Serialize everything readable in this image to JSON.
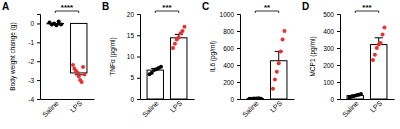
{
  "chart_data": [
    {
      "type": "bar",
      "panel_label": "A",
      "y_label": "Body weight change (g)",
      "categories": [
        "Saline",
        "LPS"
      ],
      "values": [
        -0.02,
        -2.62
      ],
      "errors": [
        0.04,
        0.1
      ],
      "points": [
        [
          0.05,
          -0.05,
          0,
          -0.1,
          0.1,
          -0.05
        ],
        [
          -2.2,
          -2.4,
          -2.5,
          -2.6,
          -2.8,
          -3.0,
          -3.1,
          -2.3,
          -2.7
        ]
      ],
      "colors": [
        "#000000",
        "#e8302e"
      ],
      "ylim": [
        -4,
        0.5
      ],
      "yticks": [
        -4,
        -3,
        -2,
        -1,
        0
      ],
      "annotation": "****"
    },
    {
      "type": "bar",
      "panel_label": "B",
      "y_label": "TNFα (pg/ml)",
      "categories": [
        "Saline",
        "LPS"
      ],
      "values": [
        6.8,
        14.4
      ],
      "errors": [
        0.4,
        0.8
      ],
      "points": [
        [
          5.8,
          6.2,
          6.8,
          7.0,
          7.3,
          7.6
        ],
        [
          12.0,
          13.0,
          14.0,
          14.5,
          15.5,
          16.0,
          17.0
        ]
      ],
      "colors": [
        "#000000",
        "#e8302e"
      ],
      "ylim": [
        0,
        20
      ],
      "yticks": [
        0,
        5,
        10,
        15,
        20
      ],
      "annotation": "***"
    },
    {
      "type": "bar",
      "panel_label": "C",
      "y_label": "IL6 (pg/ml)",
      "categories": [
        "Saline",
        "LPS"
      ],
      "values": [
        5,
        450
      ],
      "errors": [
        2,
        110
      ],
      "points": [
        [
          2,
          3,
          5,
          6,
          8,
          4
        ],
        [
          120,
          230,
          320,
          420,
          560,
          700,
          800
        ]
      ],
      "colors": [
        "#000000",
        "#e8302e"
      ],
      "ylim": [
        0,
        1000
      ],
      "yticks": [
        0,
        200,
        400,
        600,
        800,
        1000
      ],
      "annotation": "**"
    },
    {
      "type": "bar",
      "panel_label": "D",
      "y_label": "MCP1 (pg/ml)",
      "categories": [
        "Saline",
        "LPS"
      ],
      "values": [
        20,
        320
      ],
      "errors": [
        4,
        40
      ],
      "points": [
        [
          10,
          15,
          18,
          22,
          25,
          30
        ],
        [
          230,
          260,
          300,
          320,
          330,
          380,
          420
        ]
      ],
      "colors": [
        "#000000",
        "#e8302e"
      ],
      "ylim": [
        0,
        500
      ],
      "yticks": [
        0,
        100,
        200,
        300,
        400,
        500
      ],
      "annotation": "***"
    }
  ]
}
